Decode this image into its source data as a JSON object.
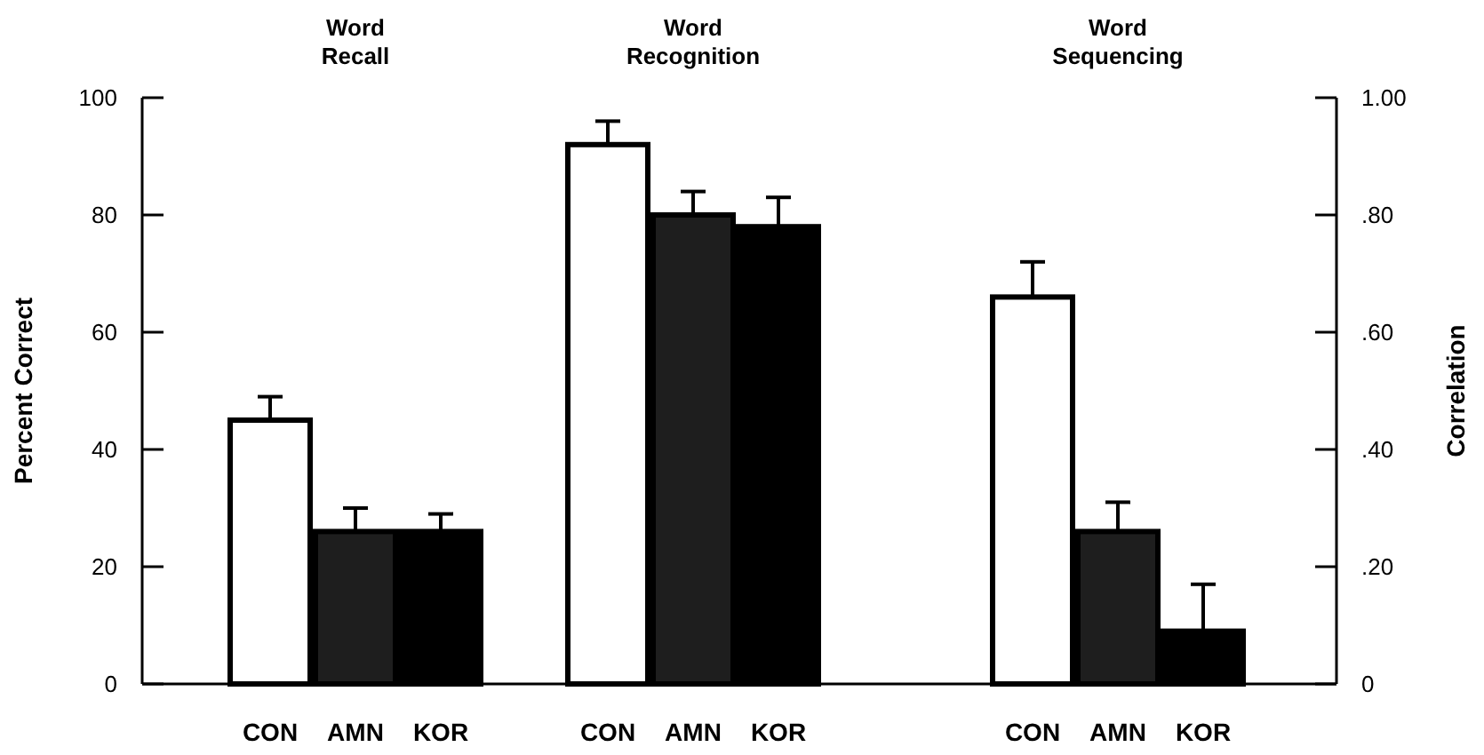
{
  "chart_data": {
    "type": "bar",
    "categories": [
      "CON",
      "AMN",
      "KOR",
      "CON",
      "AMN",
      "KOR",
      "CON",
      "AMN",
      "KOR"
    ],
    "series": [
      {
        "axis": "y",
        "colors": [
          "#ffffff",
          "#1e1e1e",
          "#000000",
          "#ffffff",
          "#1e1e1e",
          "#000000",
          null,
          null,
          null
        ],
        "values": [
          45,
          26,
          26,
          92,
          80,
          78,
          null,
          null,
          null
        ],
        "errors": [
          [
            45,
            49
          ],
          [
            26,
            30
          ],
          [
            26,
            29
          ],
          [
            92,
            96
          ],
          [
            80,
            84
          ],
          [
            78,
            83
          ],
          null,
          null,
          null
        ]
      },
      {
        "axis": "y2",
        "colors": [
          null,
          null,
          null,
          null,
          null,
          null,
          "#ffffff",
          "#1e1e1e",
          "#000000"
        ],
        "values": [
          null,
          null,
          null,
          null,
          null,
          null,
          0.66,
          0.26,
          0.09
        ],
        "errors": [
          null,
          null,
          null,
          null,
          null,
          null,
          [
            0.66,
            0.72
          ],
          [
            0.26,
            0.31
          ],
          [
            0.09,
            0.17
          ]
        ]
      }
    ],
    "ylabel": "Percent Correct",
    "y2label": "Correlation",
    "ylim": [
      0,
      100
    ],
    "yticks": [
      0,
      20,
      40,
      60,
      80,
      100
    ],
    "y2lim": [
      0,
      1
    ],
    "y2ticks": [
      {
        "value": 0,
        "label": "0"
      },
      {
        "value": 0.2,
        "label": ".20"
      },
      {
        "value": 0.4,
        "label": ".40"
      },
      {
        "value": 0.6,
        "label": ".60"
      },
      {
        "value": 0.8,
        "label": ".80"
      },
      {
        "value": 1,
        "label": "1.00"
      }
    ],
    "annotations": [
      "Word Recall",
      "Word Recognition",
      "Word Sequencing"
    ],
    "grid": false
  }
}
